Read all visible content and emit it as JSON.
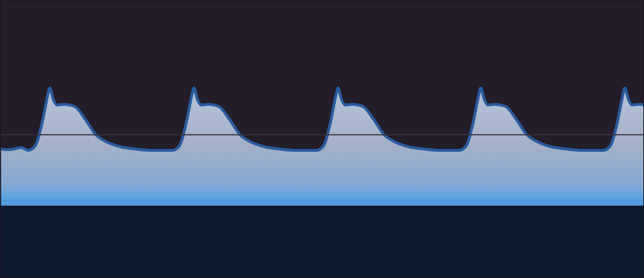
{
  "chart_data": {
    "type": "area",
    "x": [
      0,
      10,
      20,
      30,
      40,
      50,
      60,
      67,
      70,
      75,
      80,
      90,
      105,
      120,
      135,
      150,
      170,
      190,
      210,
      230,
      243,
      253,
      263,
      270,
      273,
      278,
      283,
      293,
      308,
      323,
      338,
      353,
      373,
      393,
      413,
      433,
      446,
      456,
      466,
      473,
      476,
      481,
      486,
      496,
      511,
      526,
      541,
      556,
      576,
      596,
      616,
      636,
      647,
      657,
      667,
      674,
      677,
      682,
      687,
      697,
      712,
      727,
      742,
      757,
      777,
      797,
      817,
      837,
      850,
      860,
      870,
      877,
      880,
      885,
      890,
      900,
      907
    ],
    "values": [
      80,
      79,
      80,
      82,
      78,
      85,
      120,
      155,
      166,
      150,
      142,
      143,
      140,
      122,
      100,
      90,
      83,
      80,
      78,
      78,
      78,
      85,
      120,
      155,
      166,
      150,
      142,
      143,
      140,
      122,
      100,
      90,
      83,
      80,
      78,
      78,
      78,
      85,
      120,
      155,
      166,
      150,
      142,
      143,
      140,
      122,
      100,
      90,
      83,
      80,
      78,
      78,
      78,
      85,
      120,
      155,
      166,
      150,
      142,
      143,
      140,
      122,
      100,
      90,
      83,
      80,
      78,
      78,
      78,
      85,
      120,
      155,
      166,
      150,
      142,
      143,
      142
    ],
    "xlim": [
      0,
      907
    ],
    "ylim": [
      -102,
      290
    ],
    "color": "#a4b0c6",
    "tick_labels": false
  }
}
